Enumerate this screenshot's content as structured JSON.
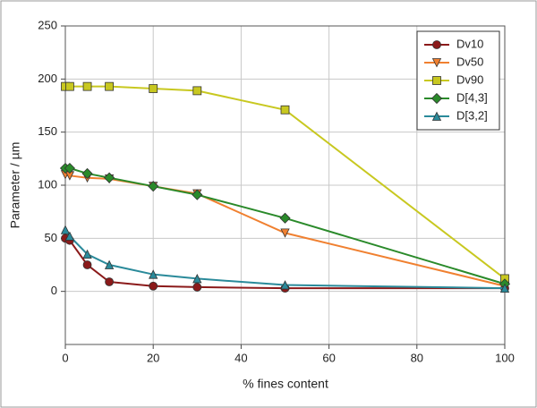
{
  "chart_data": {
    "type": "line",
    "xlabel": "% fines content",
    "ylabel": "Parameter / µm",
    "x": [
      0,
      1,
      5,
      10,
      20,
      30,
      50,
      100
    ],
    "series": [
      {
        "name": "Dv10",
        "color": "#8b1a1a",
        "marker": "circle",
        "values": [
          50,
          48,
          25,
          9,
          5,
          4,
          3,
          3
        ]
      },
      {
        "name": "Dv50",
        "color": "#f08030",
        "marker": "triangle-down",
        "values": [
          110,
          109,
          107,
          106,
          99,
          92,
          55,
          5
        ]
      },
      {
        "name": "Dv90",
        "color": "#c8c820",
        "marker": "square",
        "values": [
          193,
          193,
          193,
          193,
          191,
          189,
          171,
          12
        ]
      },
      {
        "name": "D[4,3]",
        "color": "#2a8a2a",
        "marker": "diamond",
        "values": [
          116,
          116,
          111,
          107,
          99,
          91,
          69,
          7
        ]
      },
      {
        "name": "D[3,2]",
        "color": "#2a8a9a",
        "marker": "triangle-up",
        "values": [
          58,
          52,
          35,
          25,
          16,
          12,
          6,
          3
        ]
      }
    ],
    "xlim": [
      0,
      100
    ],
    "xticks": [
      0,
      20,
      40,
      60,
      80,
      100
    ],
    "ylim": [
      -50,
      250
    ],
    "yticks": [
      0,
      50,
      100,
      150,
      200,
      250
    ],
    "grid": true,
    "legend": "upper-right"
  }
}
